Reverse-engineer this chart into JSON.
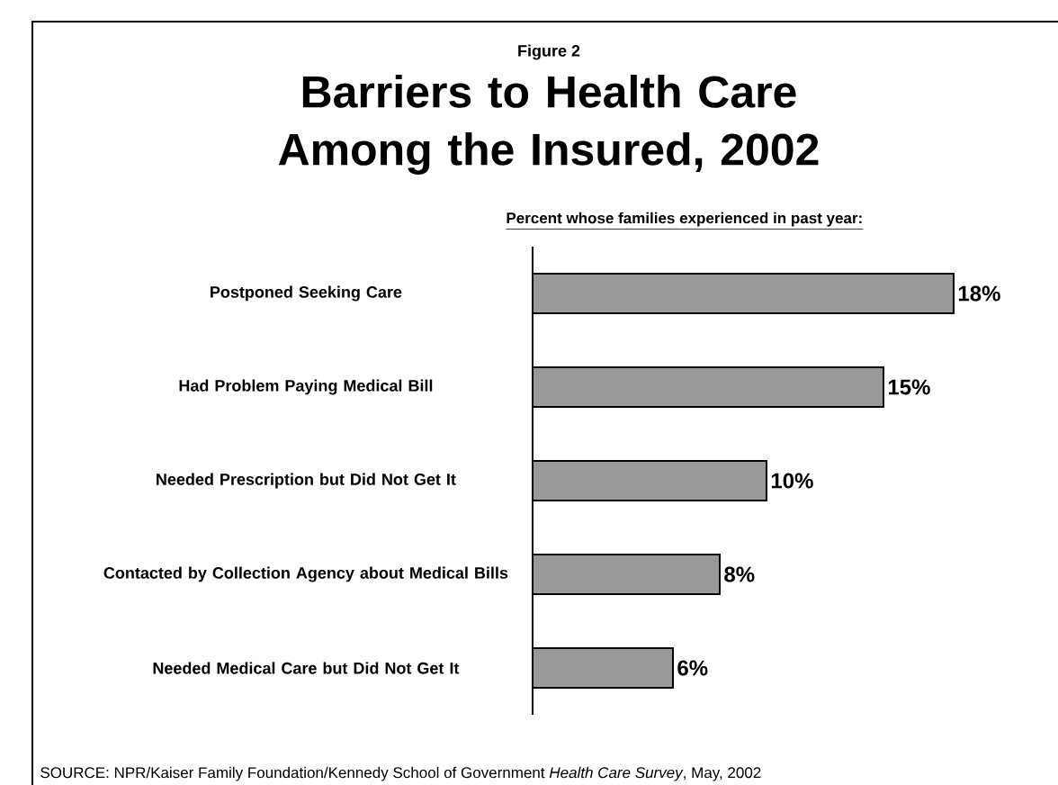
{
  "chart_data": {
    "type": "bar",
    "orientation": "horizontal",
    "subtitle": "Figure 2",
    "title": "Barriers to Health Care Among the Insured, 2002",
    "xlabel": "Percent whose families experienced in past year:",
    "categories": [
      "Postponed Seeking Care",
      "Had Problem Paying Medical Bill",
      "Needed Prescription but Did Not Get It",
      "Contacted by Collection Agency about Medical Bills",
      "Needed Medical Care but Did Not Get It"
    ],
    "values": [
      18,
      15,
      10,
      8,
      6
    ],
    "value_labels": [
      "18%",
      "15%",
      "10%",
      "8%",
      "6%"
    ],
    "color": "#999999",
    "annotations": [
      "SOURCE: NPR/Kaiser Family Foundation/Kennedy School of Government *Health Care Survey*, May, 2002"
    ]
  }
}
